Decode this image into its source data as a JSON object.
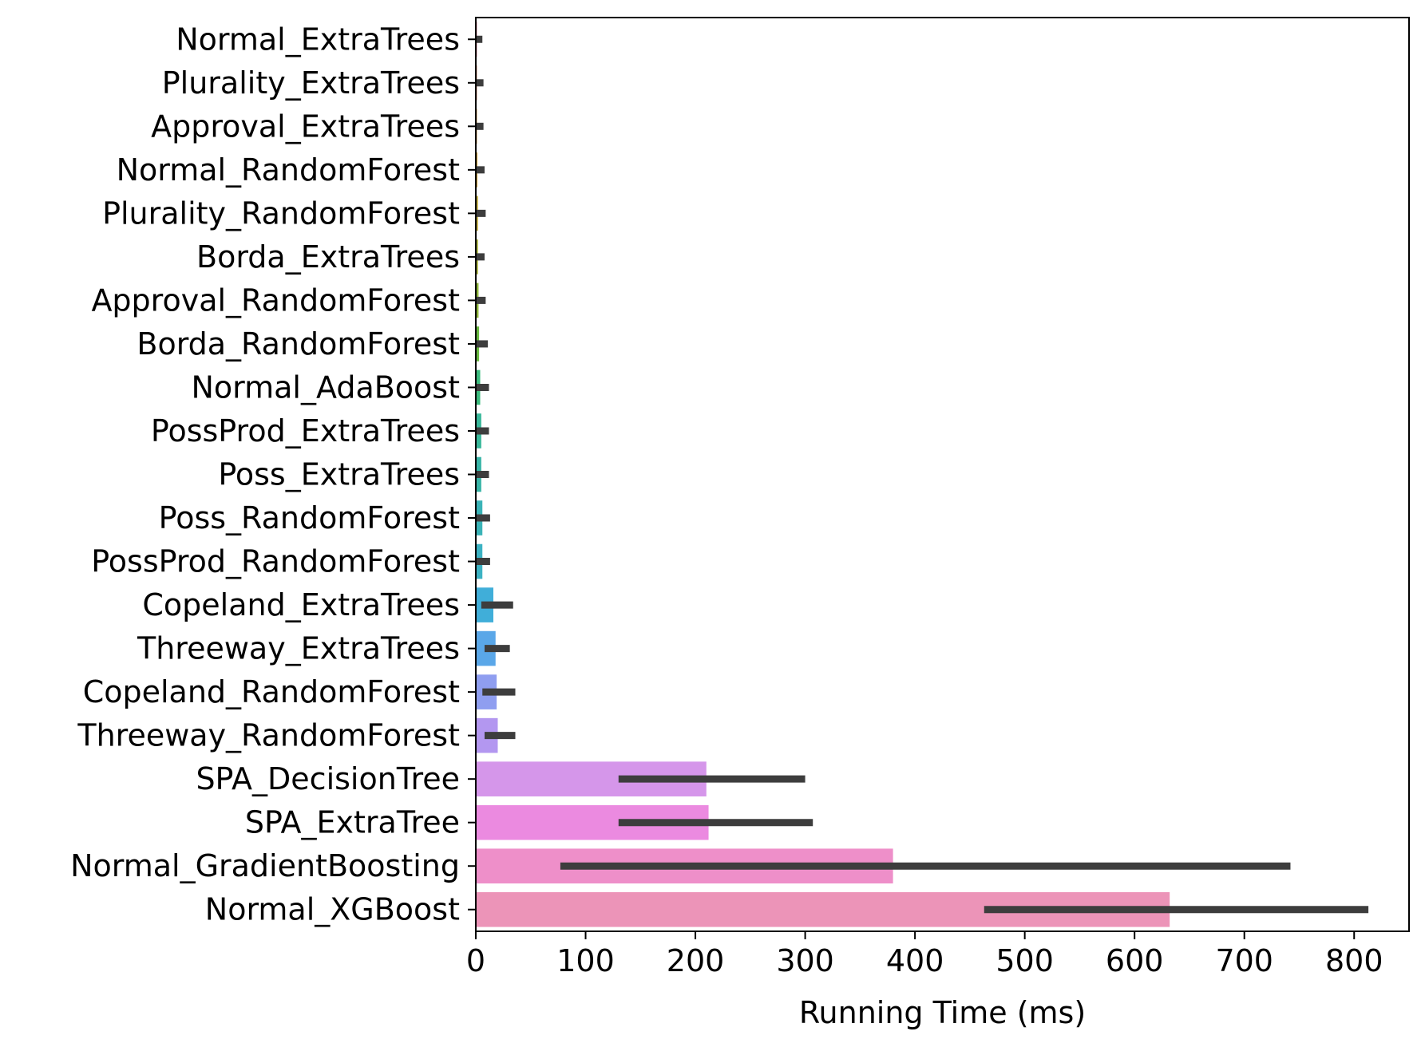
{
  "chart_data": {
    "type": "bar",
    "orientation": "horizontal",
    "title": "",
    "xlabel": "Running Time (ms)",
    "ylabel": "",
    "xlim": [
      0,
      850
    ],
    "x_ticks": [
      0,
      100,
      200,
      300,
      400,
      500,
      600,
      700,
      800
    ],
    "grid": false,
    "legend": "none",
    "error_bar_color": "#3d3d3d",
    "categories": [
      "Normal_ExtraTrees",
      "Plurality_ExtraTrees",
      "Approval_ExtraTrees",
      "Normal_RandomForest",
      "Plurality_RandomForest",
      "Borda_ExtraTrees",
      "Approval_RandomForest",
      "Borda_RandomForest",
      "Normal_AdaBoost",
      "PossProd_ExtraTrees",
      "Poss_ExtraTrees",
      "Poss_RandomForest",
      "PossProd_RandomForest",
      "Copeland_ExtraTrees",
      "Threeway_ExtraTrees",
      "Copeland_RandomForest",
      "Threeway_RandomForest",
      "SPA_DecisionTree",
      "SPA_ExtraTree",
      "Normal_GradientBoosting",
      "Normal_XGBoost"
    ],
    "values": [
      1,
      1,
      1,
      1.5,
      2,
      2,
      2.5,
      3,
      4,
      5,
      5,
      6,
      6,
      16,
      18,
      19,
      20,
      210,
      212,
      380,
      632
    ],
    "err_low": [
      0,
      0,
      0,
      0,
      0,
      0,
      0,
      0,
      0,
      0,
      0,
      0,
      0,
      5,
      8,
      6,
      8,
      130,
      130,
      77,
      463
    ],
    "err_high": [
      6,
      7,
      7,
      8,
      9,
      8,
      9,
      11,
      12,
      12,
      12,
      13,
      13,
      34,
      31,
      36,
      36,
      300,
      307,
      742,
      813
    ],
    "colors": [
      "#f4879b",
      "#ef8c6e",
      "#e69a45",
      "#d0a23a",
      "#bda93a",
      "#a6b03a",
      "#8eb53a",
      "#68b93f",
      "#3bbb7d",
      "#39b89a",
      "#38b5a7",
      "#3ab3b7",
      "#3cb2c3",
      "#40aed9",
      "#5aa7e8",
      "#8f9ef0",
      "#b397f0",
      "#d596ea",
      "#eb8ae0",
      "#ee8fc9",
      "#ec94b8"
    ]
  }
}
